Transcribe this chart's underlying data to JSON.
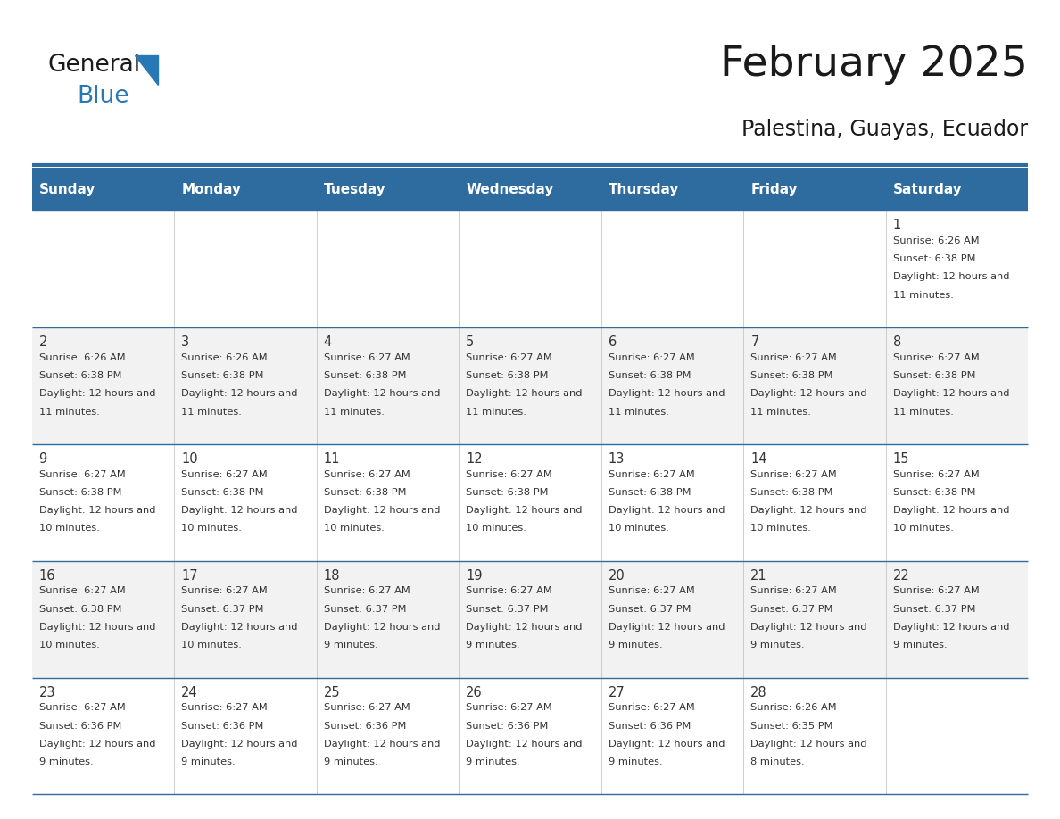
{
  "title": "February 2025",
  "subtitle": "Palestina, Guayas, Ecuador",
  "header_bg_color": "#2E6B9E",
  "header_text_color": "#FFFFFF",
  "border_color": "#2E6B9E",
  "days_of_week": [
    "Sunday",
    "Monday",
    "Tuesday",
    "Wednesday",
    "Thursday",
    "Friday",
    "Saturday"
  ],
  "title_color": "#1a1a1a",
  "subtitle_color": "#1a1a1a",
  "cell_text_color": "#333333",
  "day_num_color": "#333333",
  "calendar_data": [
    [
      null,
      null,
      null,
      null,
      null,
      null,
      {
        "day": 1,
        "sunrise": "6:26 AM",
        "sunset": "6:38 PM",
        "daylight": "12 hours and 11 minutes."
      }
    ],
    [
      {
        "day": 2,
        "sunrise": "6:26 AM",
        "sunset": "6:38 PM",
        "daylight": "12 hours and 11 minutes."
      },
      {
        "day": 3,
        "sunrise": "6:26 AM",
        "sunset": "6:38 PM",
        "daylight": "12 hours and 11 minutes."
      },
      {
        "day": 4,
        "sunrise": "6:27 AM",
        "sunset": "6:38 PM",
        "daylight": "12 hours and 11 minutes."
      },
      {
        "day": 5,
        "sunrise": "6:27 AM",
        "sunset": "6:38 PM",
        "daylight": "12 hours and 11 minutes."
      },
      {
        "day": 6,
        "sunrise": "6:27 AM",
        "sunset": "6:38 PM",
        "daylight": "12 hours and 11 minutes."
      },
      {
        "day": 7,
        "sunrise": "6:27 AM",
        "sunset": "6:38 PM",
        "daylight": "12 hours and 11 minutes."
      },
      {
        "day": 8,
        "sunrise": "6:27 AM",
        "sunset": "6:38 PM",
        "daylight": "12 hours and 11 minutes."
      }
    ],
    [
      {
        "day": 9,
        "sunrise": "6:27 AM",
        "sunset": "6:38 PM",
        "daylight": "12 hours and 10 minutes."
      },
      {
        "day": 10,
        "sunrise": "6:27 AM",
        "sunset": "6:38 PM",
        "daylight": "12 hours and 10 minutes."
      },
      {
        "day": 11,
        "sunrise": "6:27 AM",
        "sunset": "6:38 PM",
        "daylight": "12 hours and 10 minutes."
      },
      {
        "day": 12,
        "sunrise": "6:27 AM",
        "sunset": "6:38 PM",
        "daylight": "12 hours and 10 minutes."
      },
      {
        "day": 13,
        "sunrise": "6:27 AM",
        "sunset": "6:38 PM",
        "daylight": "12 hours and 10 minutes."
      },
      {
        "day": 14,
        "sunrise": "6:27 AM",
        "sunset": "6:38 PM",
        "daylight": "12 hours and 10 minutes."
      },
      {
        "day": 15,
        "sunrise": "6:27 AM",
        "sunset": "6:38 PM",
        "daylight": "12 hours and 10 minutes."
      }
    ],
    [
      {
        "day": 16,
        "sunrise": "6:27 AM",
        "sunset": "6:38 PM",
        "daylight": "12 hours and 10 minutes."
      },
      {
        "day": 17,
        "sunrise": "6:27 AM",
        "sunset": "6:37 PM",
        "daylight": "12 hours and 10 minutes."
      },
      {
        "day": 18,
        "sunrise": "6:27 AM",
        "sunset": "6:37 PM",
        "daylight": "12 hours and 9 minutes."
      },
      {
        "day": 19,
        "sunrise": "6:27 AM",
        "sunset": "6:37 PM",
        "daylight": "12 hours and 9 minutes."
      },
      {
        "day": 20,
        "sunrise": "6:27 AM",
        "sunset": "6:37 PM",
        "daylight": "12 hours and 9 minutes."
      },
      {
        "day": 21,
        "sunrise": "6:27 AM",
        "sunset": "6:37 PM",
        "daylight": "12 hours and 9 minutes."
      },
      {
        "day": 22,
        "sunrise": "6:27 AM",
        "sunset": "6:37 PM",
        "daylight": "12 hours and 9 minutes."
      }
    ],
    [
      {
        "day": 23,
        "sunrise": "6:27 AM",
        "sunset": "6:36 PM",
        "daylight": "12 hours and 9 minutes."
      },
      {
        "day": 24,
        "sunrise": "6:27 AM",
        "sunset": "6:36 PM",
        "daylight": "12 hours and 9 minutes."
      },
      {
        "day": 25,
        "sunrise": "6:27 AM",
        "sunset": "6:36 PM",
        "daylight": "12 hours and 9 minutes."
      },
      {
        "day": 26,
        "sunrise": "6:27 AM",
        "sunset": "6:36 PM",
        "daylight": "12 hours and 9 minutes."
      },
      {
        "day": 27,
        "sunrise": "6:27 AM",
        "sunset": "6:36 PM",
        "daylight": "12 hours and 9 minutes."
      },
      {
        "day": 28,
        "sunrise": "6:26 AM",
        "sunset": "6:35 PM",
        "daylight": "12 hours and 8 minutes."
      },
      null
    ]
  ],
  "logo_general_color": "#1a1a1a",
  "logo_blue_color": "#2778B5"
}
